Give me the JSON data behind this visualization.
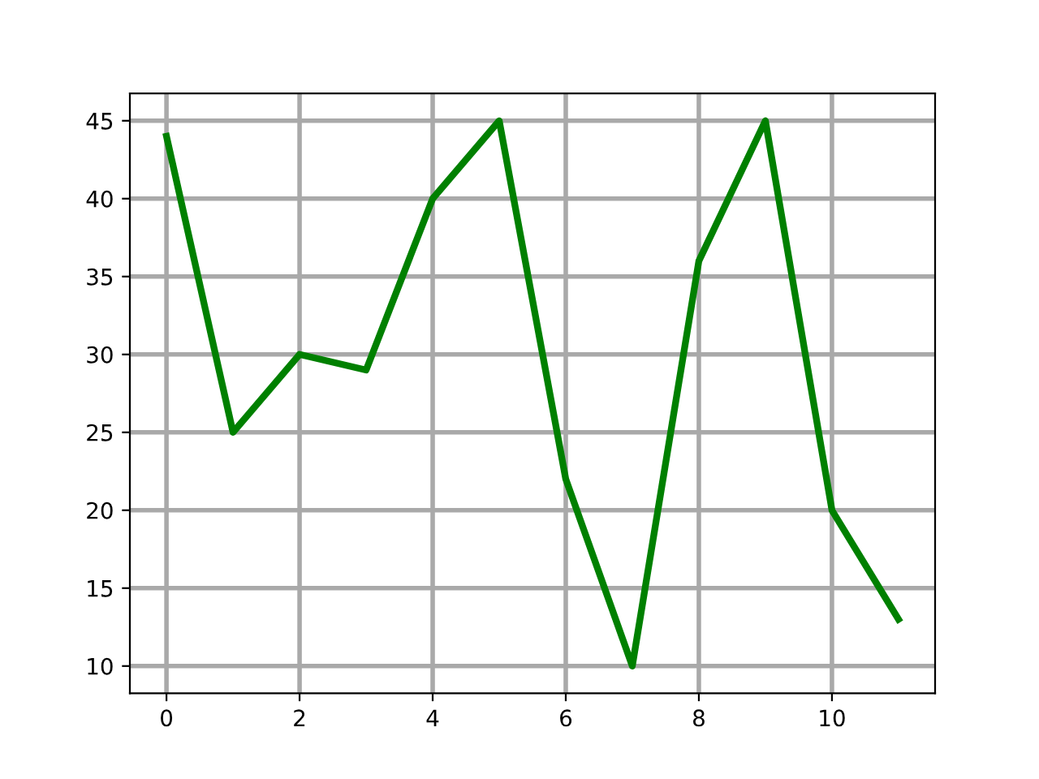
{
  "chart_data": {
    "type": "line",
    "x": [
      0,
      1,
      2,
      3,
      4,
      5,
      6,
      7,
      8,
      9,
      10,
      11
    ],
    "series": [
      {
        "color": "#008000",
        "values": [
          44,
          25,
          30,
          29,
          40,
          45,
          22,
          10,
          36,
          45,
          20,
          13
        ]
      }
    ],
    "xlim": [
      -0.55,
      11.55
    ],
    "ylim": [
      8.25,
      46.75
    ],
    "xticks": [
      0,
      2,
      4,
      6,
      8,
      10
    ],
    "yticks": [
      10,
      15,
      20,
      25,
      30,
      35,
      40,
      45
    ],
    "grid": true,
    "marker": "none",
    "line_style": "solid"
  }
}
